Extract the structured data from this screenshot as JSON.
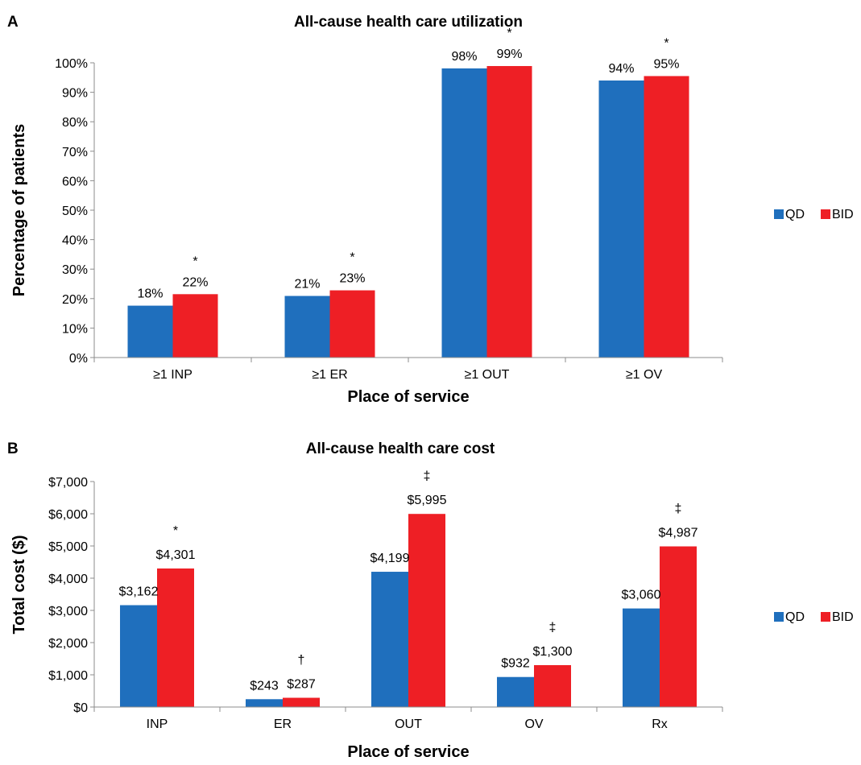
{
  "colors": {
    "QD": "#1f6fbd",
    "BID": "#ee1f25"
  },
  "chart_data": [
    {
      "type": "bar",
      "panel": "A",
      "title": "All-cause health care utilization",
      "xlabel": "Place of service",
      "ylabel": "Percentage of patients",
      "ylim": [
        0,
        100
      ],
      "yticks": [
        "0%",
        "10%",
        "20%",
        "30%",
        "40%",
        "50%",
        "60%",
        "70%",
        "80%",
        "90%",
        "100%"
      ],
      "categories": [
        "≥1 INP",
        "≥1 ER",
        "≥1 OUT",
        "≥1 OV"
      ],
      "series": [
        {
          "name": "QD",
          "values": [
            17.6,
            20.9,
            98.1,
            94.0
          ],
          "labels": [
            "18%",
            "21%",
            "98%",
            "94%"
          ]
        },
        {
          "name": "BID",
          "values": [
            21.5,
            22.8,
            98.9,
            95.5
          ],
          "labels": [
            "22%",
            "23%",
            "99%",
            "95%"
          ]
        }
      ],
      "significance": [
        "*",
        "*",
        "*",
        "*"
      ],
      "legend": [
        "QD",
        "BID"
      ],
      "legend_position": "right",
      "grid": false
    },
    {
      "type": "bar",
      "panel": "B",
      "title": "All-cause health care cost",
      "xlabel": "Place of service",
      "ylabel": "Total cost ($)",
      "ylim": [
        0,
        7000
      ],
      "yticks": [
        "$0",
        "$1,000",
        "$2,000",
        "$3,000",
        "$4,000",
        "$5,000",
        "$6,000",
        "$7,000"
      ],
      "categories": [
        "INP",
        "ER",
        "OUT",
        "OV",
        "Rx"
      ],
      "series": [
        {
          "name": "QD",
          "values": [
            3162,
            243,
            4199,
            932,
            3060
          ],
          "labels": [
            "$3,162",
            "$243",
            "$4,199",
            "$932",
            "$3,060"
          ]
        },
        {
          "name": "BID",
          "values": [
            4301,
            287,
            5995,
            1300,
            4987
          ],
          "labels": [
            "$4,301",
            "$287",
            "$5,995",
            "$1,300",
            "$4,987"
          ]
        }
      ],
      "significance": [
        "*",
        "†",
        "‡",
        "‡",
        "‡"
      ],
      "legend": [
        "QD",
        "BID"
      ],
      "legend_position": "right",
      "grid": false
    }
  ]
}
